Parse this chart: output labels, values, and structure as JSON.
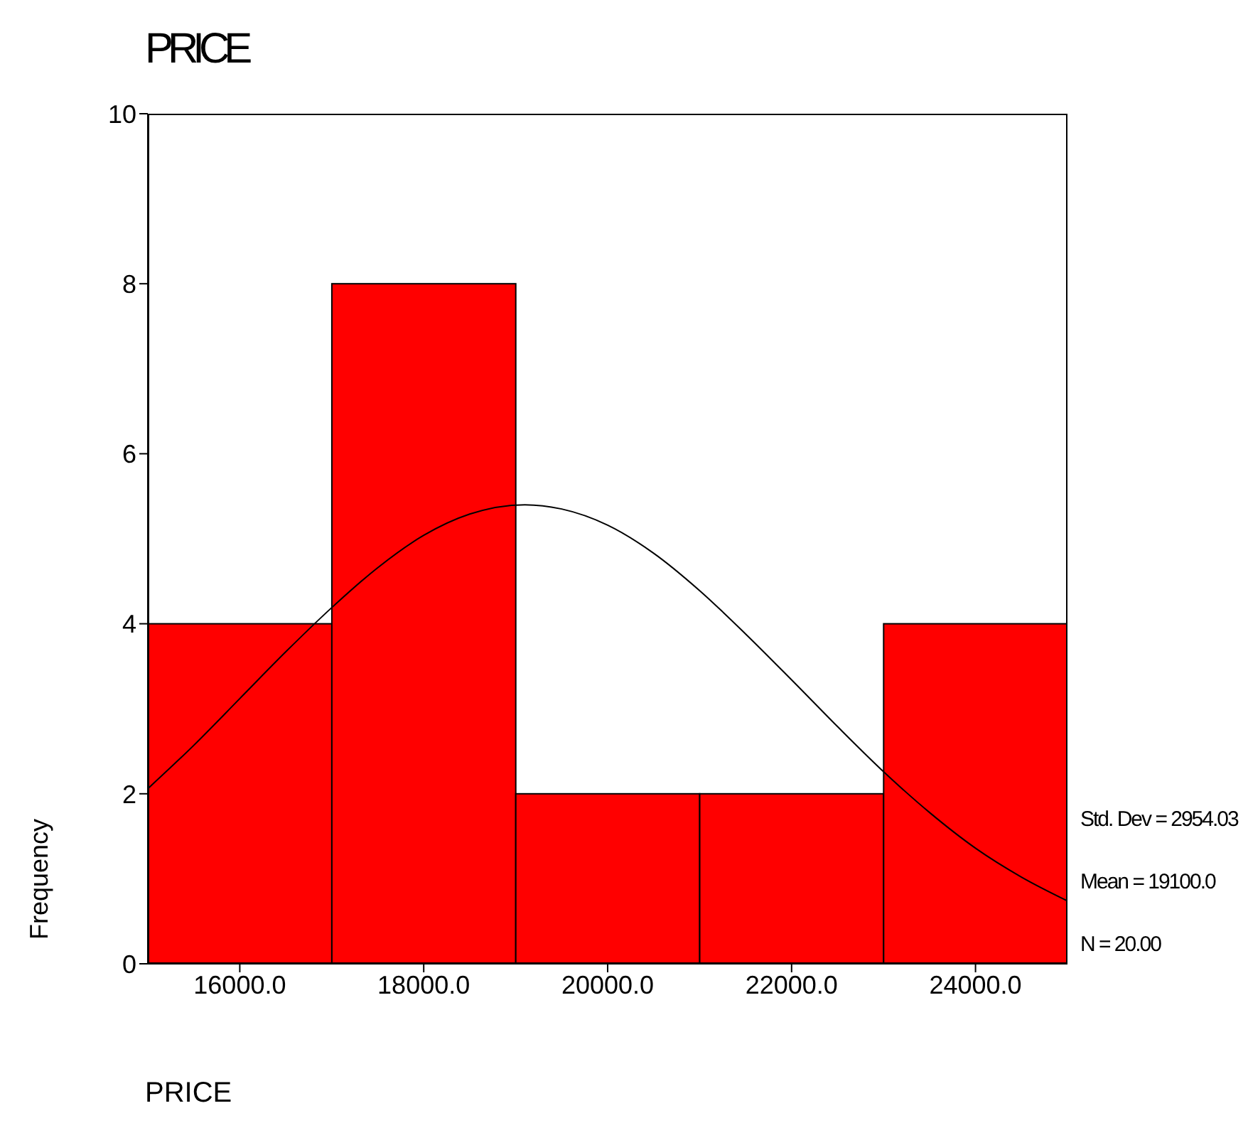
{
  "chart_data": {
    "type": "histogram",
    "title": "PRICE",
    "xlabel": "PRICE",
    "ylabel": "Frequency",
    "bins": [
      15000,
      17000,
      19000,
      21000,
      23000,
      25000
    ],
    "values": [
      4,
      8,
      2,
      2,
      4
    ],
    "color": "#ff0000",
    "xlim": [
      15000,
      25000
    ],
    "xticks": [
      {
        "value": 16000,
        "label": "16000.0"
      },
      {
        "value": 18000,
        "label": "18000.0"
      },
      {
        "value": 20000,
        "label": "20000.0"
      },
      {
        "value": 22000,
        "label": "22000.0"
      },
      {
        "value": 24000,
        "label": "24000.0"
      }
    ],
    "ylim": [
      0,
      10
    ],
    "yticks": [
      0,
      2,
      4,
      6,
      8,
      10
    ],
    "grid": false,
    "series": [
      {
        "type": "line",
        "color": "#000000",
        "x": [
          15000,
          15500,
          16000,
          16500,
          17000,
          17500,
          18000,
          18500,
          19100,
          19500,
          20000,
          20500,
          21000,
          21500,
          22000,
          22500,
          23000,
          23500,
          24000,
          24500,
          25000
        ],
        "values": [
          2.06,
          2.57,
          3.12,
          3.67,
          4.19,
          4.66,
          5.04,
          5.29,
          5.4,
          5.35,
          5.16,
          4.83,
          4.39,
          3.88,
          3.34,
          2.79,
          2.26,
          1.78,
          1.36,
          1.02,
          0.74
        ]
      }
    ],
    "annotations": [
      "Std. Dev = 2954.03",
      "Mean = 19100.0",
      "N = 20.00"
    ]
  }
}
